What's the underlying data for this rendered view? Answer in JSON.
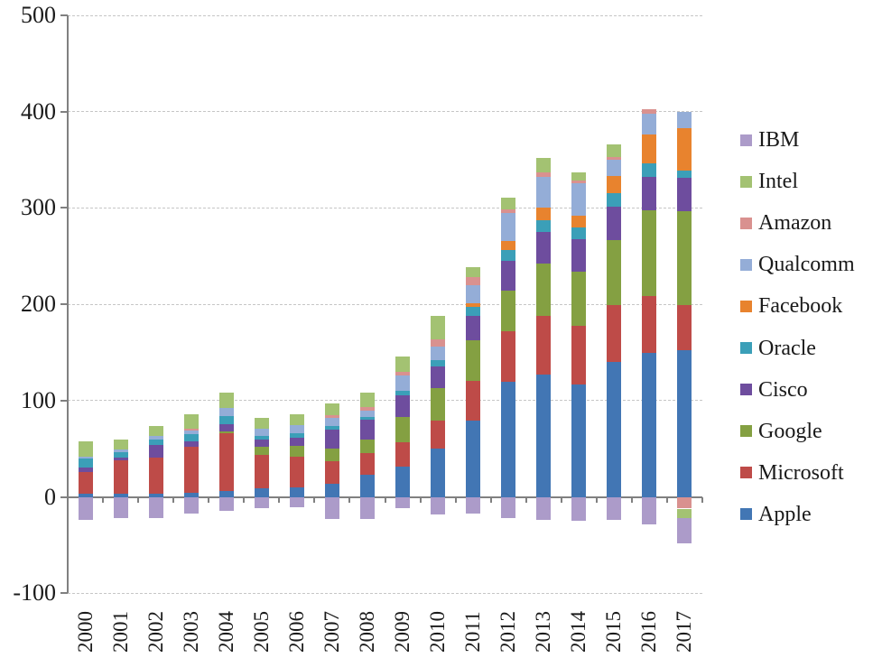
{
  "chart_data": {
    "type": "bar",
    "stacked": true,
    "title": "",
    "xlabel": "",
    "ylabel": "",
    "categories": [
      "2000",
      "2001",
      "2002",
      "2003",
      "2004",
      "2005",
      "2006",
      "2007",
      "2008",
      "2009",
      "2010",
      "2011",
      "2012",
      "2013",
      "2014",
      "2015",
      "2016",
      "2017"
    ],
    "series": [
      {
        "name": "Apple",
        "color": "#4276b4",
        "values": [
          3,
          3,
          3,
          4,
          6,
          9,
          10,
          14,
          23,
          32,
          50,
          79,
          120,
          127,
          117,
          140,
          150,
          152
        ]
      },
      {
        "name": "Microsoft",
        "color": "#be4b48",
        "values": [
          23,
          35,
          38,
          48,
          60,
          35,
          32,
          23,
          23,
          25,
          29,
          42,
          52,
          61,
          61,
          59,
          59,
          47
        ]
      },
      {
        "name": "Google",
        "color": "#84a042",
        "values": [
          0,
          0,
          0,
          0,
          2,
          8,
          11,
          13,
          14,
          26,
          34,
          42,
          42,
          54,
          56,
          68,
          89,
          98
        ]
      },
      {
        "name": "Cisco",
        "color": "#6e4d9e",
        "values": [
          5,
          3,
          13,
          6,
          8,
          8,
          9,
          20,
          20,
          23,
          23,
          25,
          31,
          33,
          34,
          34,
          34,
          34
        ]
      },
      {
        "name": "Oracle",
        "color": "#3b9fb8",
        "values": [
          9,
          6,
          6,
          7,
          8,
          3,
          4,
          4,
          3,
          4,
          6,
          9,
          11,
          12,
          12,
          14,
          14,
          8
        ]
      },
      {
        "name": "Facebook",
        "color": "#e8832e",
        "values": [
          0,
          0,
          0,
          0,
          0,
          0,
          0,
          0,
          0,
          0,
          0,
          4,
          10,
          13,
          12,
          18,
          30,
          44
        ]
      },
      {
        "name": "Qualcomm",
        "color": "#94add7",
        "values": [
          2,
          2,
          3,
          4,
          8,
          8,
          9,
          8,
          7,
          16,
          14,
          19,
          29,
          32,
          34,
          17,
          22,
          17
        ]
      },
      {
        "name": "Amazon",
        "color": "#d9918f",
        "values": [
          0,
          0,
          0,
          2,
          0,
          0,
          0,
          3,
          3,
          4,
          8,
          8,
          4,
          5,
          3,
          3,
          5,
          -12
        ]
      },
      {
        "name": "Intel",
        "color": "#a3c272",
        "values": [
          16,
          11,
          11,
          15,
          16,
          11,
          11,
          12,
          15,
          16,
          24,
          11,
          12,
          15,
          8,
          13,
          0,
          -10
        ]
      },
      {
        "name": "IBM",
        "color": "#ac9bc9",
        "values": [
          -24,
          -22,
          -22,
          -17,
          -14,
          -12,
          -11,
          -23,
          -23,
          -12,
          -18,
          -17,
          -22,
          -24,
          -25,
          -24,
          -28,
          -26
        ]
      }
    ],
    "legend_order": [
      "IBM",
      "Intel",
      "Amazon",
      "Qualcomm",
      "Facebook",
      "Oracle",
      "Cisco",
      "Google",
      "Microsoft",
      "Apple"
    ],
    "legend_position": "right",
    "y_ticks": [
      500,
      400,
      300,
      200,
      100,
      0,
      -100
    ],
    "ylim": [
      -100,
      500
    ],
    "grid": "horizontal-dashed",
    "axis_color": "#808080",
    "grid_color": "#c6c6c6"
  }
}
